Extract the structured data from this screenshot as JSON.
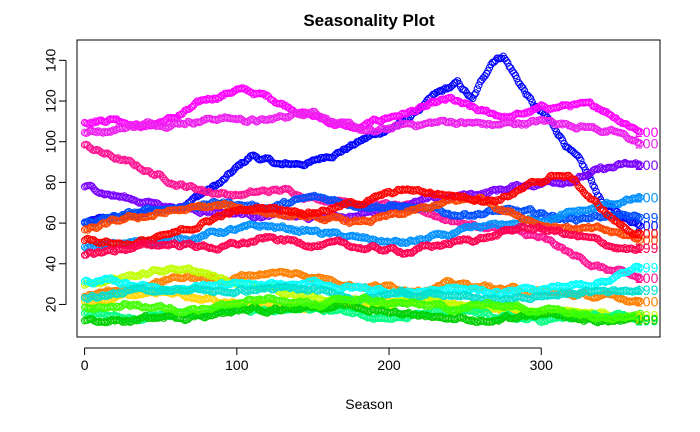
{
  "chart_data": {
    "type": "scatter",
    "title": "Seasonality Plot",
    "xlabel": "Season",
    "ylabel": "",
    "xlim": [
      -5,
      378
    ],
    "ylim": [
      4,
      150
    ],
    "x_ticks": [
      0,
      100,
      200,
      300
    ],
    "y_ticks": [
      20,
      40,
      60,
      80,
      100,
      120,
      140
    ],
    "grid": false,
    "legend": "none",
    "marker": "open-circle",
    "end_labels": [
      "200",
      "200",
      "200",
      "200",
      "200",
      "199",
      "200",
      "200",
      "200",
      "199",
      "200",
      "200",
      "199",
      "199",
      "199",
      "199",
      "199"
    ],
    "series": [
      {
        "color": "#0000ff",
        "knots": [
          [
            0,
            60
          ],
          [
            30,
            63
          ],
          [
            60,
            68
          ],
          [
            90,
            80
          ],
          [
            110,
            93
          ],
          [
            130,
            88
          ],
          [
            150,
            90
          ],
          [
            180,
            100
          ],
          [
            210,
            110
          ],
          [
            230,
            122
          ],
          [
            245,
            128
          ],
          [
            255,
            120
          ],
          [
            268,
            140
          ],
          [
            275,
            143
          ],
          [
            285,
            130
          ],
          [
            295,
            118
          ],
          [
            305,
            110
          ],
          [
            315,
            100
          ],
          [
            325,
            90
          ],
          [
            340,
            70
          ],
          [
            355,
            62
          ],
          [
            365,
            60
          ]
        ]
      },
      {
        "color": "#ff00ff",
        "knots": [
          [
            0,
            110
          ],
          [
            20,
            112
          ],
          [
            40,
            108
          ],
          [
            60,
            112
          ],
          [
            80,
            120
          ],
          [
            100,
            126
          ],
          [
            120,
            122
          ],
          [
            140,
            116
          ],
          [
            160,
            110
          ],
          [
            180,
            106
          ],
          [
            200,
            112
          ],
          [
            220,
            116
          ],
          [
            240,
            120
          ],
          [
            260,
            114
          ],
          [
            280,
            112
          ],
          [
            300,
            116
          ],
          [
            320,
            118
          ],
          [
            340,
            116
          ],
          [
            355,
            110
          ],
          [
            365,
            106
          ]
        ]
      },
      {
        "color": "#ee22ee",
        "knots": [
          [
            0,
            104
          ],
          [
            30,
            108
          ],
          [
            60,
            110
          ],
          [
            90,
            112
          ],
          [
            120,
            110
          ],
          [
            150,
            116
          ],
          [
            170,
            108
          ],
          [
            190,
            104
          ],
          [
            210,
            108
          ],
          [
            240,
            110
          ],
          [
            270,
            108
          ],
          [
            300,
            110
          ],
          [
            330,
            108
          ],
          [
            350,
            104
          ],
          [
            365,
            99
          ]
        ]
      },
      {
        "color": "#ff1493",
        "knots": [
          [
            0,
            98
          ],
          [
            20,
            92
          ],
          [
            40,
            86
          ],
          [
            60,
            80
          ],
          [
            80,
            76
          ],
          [
            100,
            74
          ],
          [
            130,
            76
          ],
          [
            160,
            72
          ],
          [
            190,
            70
          ],
          [
            220,
            66
          ],
          [
            250,
            60
          ],
          [
            280,
            56
          ],
          [
            300,
            52
          ],
          [
            320,
            44
          ],
          [
            340,
            38
          ],
          [
            365,
            32
          ]
        ]
      },
      {
        "color": "#7a00ff",
        "knots": [
          [
            0,
            78
          ],
          [
            30,
            72
          ],
          [
            60,
            68
          ],
          [
            90,
            66
          ],
          [
            120,
            64
          ],
          [
            150,
            62
          ],
          [
            180,
            64
          ],
          [
            210,
            70
          ],
          [
            240,
            72
          ],
          [
            270,
            76
          ],
          [
            300,
            80
          ],
          [
            320,
            82
          ],
          [
            340,
            86
          ],
          [
            355,
            88
          ],
          [
            365,
            88
          ]
        ]
      },
      {
        "color": "#0050ff",
        "knots": [
          [
            0,
            60
          ],
          [
            30,
            64
          ],
          [
            60,
            68
          ],
          [
            90,
            70
          ],
          [
            120,
            68
          ],
          [
            150,
            72
          ],
          [
            180,
            70
          ],
          [
            210,
            68
          ],
          [
            240,
            64
          ],
          [
            270,
            66
          ],
          [
            300,
            64
          ],
          [
            320,
            62
          ],
          [
            340,
            64
          ],
          [
            365,
            62
          ]
        ]
      },
      {
        "color": "#0090ff",
        "knots": [
          [
            0,
            48
          ],
          [
            30,
            50
          ],
          [
            60,
            52
          ],
          [
            90,
            56
          ],
          [
            120,
            58
          ],
          [
            150,
            56
          ],
          [
            180,
            52
          ],
          [
            210,
            50
          ],
          [
            240,
            54
          ],
          [
            270,
            58
          ],
          [
            300,
            62
          ],
          [
            330,
            66
          ],
          [
            350,
            70
          ],
          [
            365,
            72
          ]
        ]
      },
      {
        "color": "#ff4500",
        "knots": [
          [
            0,
            56
          ],
          [
            30,
            62
          ],
          [
            60,
            66
          ],
          [
            90,
            68
          ],
          [
            120,
            66
          ],
          [
            150,
            62
          ],
          [
            180,
            60
          ],
          [
            210,
            64
          ],
          [
            240,
            70
          ],
          [
            260,
            72
          ],
          [
            280,
            66
          ],
          [
            300,
            60
          ],
          [
            320,
            58
          ],
          [
            340,
            56
          ],
          [
            365,
            52
          ]
        ]
      },
      {
        "color": "#ff0000",
        "knots": [
          [
            0,
            52
          ],
          [
            30,
            50
          ],
          [
            60,
            54
          ],
          [
            90,
            64
          ],
          [
            120,
            68
          ],
          [
            150,
            66
          ],
          [
            180,
            70
          ],
          [
            210,
            76
          ],
          [
            240,
            74
          ],
          [
            270,
            72
          ],
          [
            300,
            80
          ],
          [
            310,
            84
          ],
          [
            320,
            82
          ],
          [
            335,
            70
          ],
          [
            350,
            60
          ],
          [
            365,
            54
          ]
        ]
      },
      {
        "color": "#ff0050",
        "knots": [
          [
            0,
            44
          ],
          [
            30,
            48
          ],
          [
            60,
            50
          ],
          [
            90,
            48
          ],
          [
            120,
            52
          ],
          [
            150,
            50
          ],
          [
            180,
            48
          ],
          [
            210,
            46
          ],
          [
            240,
            50
          ],
          [
            270,
            54
          ],
          [
            290,
            58
          ],
          [
            310,
            56
          ],
          [
            330,
            52
          ],
          [
            350,
            48
          ],
          [
            365,
            46
          ]
        ]
      },
      {
        "color": "#ff7f00",
        "knots": [
          [
            0,
            24
          ],
          [
            30,
            28
          ],
          [
            60,
            34
          ],
          [
            90,
            32
          ],
          [
            120,
            36
          ],
          [
            150,
            34
          ],
          [
            180,
            30
          ],
          [
            210,
            28
          ],
          [
            240,
            30
          ],
          [
            270,
            28
          ],
          [
            300,
            26
          ],
          [
            330,
            24
          ],
          [
            365,
            22
          ]
        ]
      },
      {
        "color": "#ffd700",
        "knots": [
          [
            0,
            22
          ],
          [
            30,
            24
          ],
          [
            60,
            26
          ],
          [
            90,
            22
          ],
          [
            120,
            20
          ],
          [
            150,
            18
          ],
          [
            180,
            20
          ],
          [
            210,
            22
          ],
          [
            240,
            20
          ],
          [
            270,
            18
          ],
          [
            300,
            16
          ],
          [
            330,
            14
          ],
          [
            365,
            14
          ]
        ]
      },
      {
        "color": "#c0ff00",
        "knots": [
          [
            0,
            30
          ],
          [
            30,
            34
          ],
          [
            60,
            38
          ],
          [
            80,
            36
          ],
          [
            100,
            30
          ],
          [
            130,
            26
          ],
          [
            160,
            22
          ],
          [
            190,
            20
          ],
          [
            220,
            22
          ],
          [
            250,
            20
          ],
          [
            280,
            18
          ],
          [
            310,
            16
          ],
          [
            340,
            15
          ],
          [
            365,
            14
          ]
        ]
      },
      {
        "color": "#00ffff",
        "knots": [
          [
            0,
            32
          ],
          [
            30,
            30
          ],
          [
            60,
            28
          ],
          [
            90,
            30
          ],
          [
            120,
            28
          ],
          [
            150,
            30
          ],
          [
            180,
            28
          ],
          [
            210,
            26
          ],
          [
            240,
            28
          ],
          [
            270,
            26
          ],
          [
            300,
            28
          ],
          [
            330,
            30
          ],
          [
            350,
            34
          ],
          [
            365,
            38
          ]
        ]
      },
      {
        "color": "#00e0d0",
        "knots": [
          [
            0,
            24
          ],
          [
            30,
            26
          ],
          [
            60,
            28
          ],
          [
            90,
            26
          ],
          [
            120,
            28
          ],
          [
            150,
            26
          ],
          [
            180,
            24
          ],
          [
            210,
            26
          ],
          [
            240,
            24
          ],
          [
            270,
            22
          ],
          [
            300,
            24
          ],
          [
            330,
            26
          ],
          [
            365,
            28
          ]
        ]
      },
      {
        "color": "#00ff80",
        "knots": [
          [
            0,
            16
          ],
          [
            30,
            14
          ],
          [
            60,
            16
          ],
          [
            90,
            18
          ],
          [
            120,
            16
          ],
          [
            150,
            18
          ],
          [
            180,
            16
          ],
          [
            210,
            14
          ],
          [
            240,
            16
          ],
          [
            270,
            14
          ],
          [
            300,
            12
          ],
          [
            330,
            14
          ],
          [
            365,
            12
          ]
        ]
      },
      {
        "color": "#00d000",
        "knots": [
          [
            0,
            12
          ],
          [
            30,
            12
          ],
          [
            60,
            14
          ],
          [
            90,
            16
          ],
          [
            120,
            18
          ],
          [
            150,
            20
          ],
          [
            180,
            18
          ],
          [
            210,
            16
          ],
          [
            240,
            14
          ],
          [
            270,
            12
          ],
          [
            300,
            14
          ],
          [
            330,
            12
          ],
          [
            365,
            12
          ]
        ]
      },
      {
        "color": "#40ff00",
        "knots": [
          [
            0,
            18
          ],
          [
            30,
            20
          ],
          [
            60,
            18
          ],
          [
            90,
            20
          ],
          [
            120,
            22
          ],
          [
            150,
            20
          ],
          [
            180,
            22
          ],
          [
            210,
            20
          ],
          [
            240,
            18
          ],
          [
            270,
            20
          ],
          [
            300,
            18
          ],
          [
            330,
            16
          ],
          [
            365,
            16
          ]
        ]
      }
    ]
  }
}
